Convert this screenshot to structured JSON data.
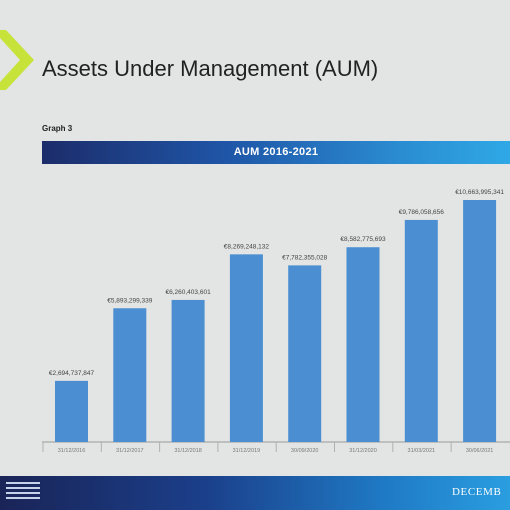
{
  "slide": {
    "title": "Assets Under Management (AUM)",
    "graph_label": "Graph 3",
    "footer_text": "DECEMB"
  },
  "colors": {
    "bar": "#4b8fd2",
    "logo_green": "#c7e33a",
    "header_start": "#1c2c6a",
    "header_end": "#2fa8e6"
  },
  "chart_data": {
    "type": "bar",
    "title": "AUM 2016-2021",
    "categories": [
      "31/12/2016",
      "31/12/2017",
      "31/12/2018",
      "31/12/2019",
      "30/09/2020",
      "31/12/2020",
      "31/03/2021",
      "30/06/2021"
    ],
    "values": [
      2694737847,
      5893299339,
      6260403601,
      8269248132,
      7782355028,
      8582775693,
      9786058656,
      10663995341
    ],
    "value_labels": [
      "€2,694,737,847",
      "€5,893,299,339",
      "€6,260,403,601",
      "€8,269,248,132",
      "€7,782,355,028",
      "€8,582,775,693",
      "€9,786,058,656",
      "€10,663,995,341"
    ],
    "xlabel": "",
    "ylabel": "",
    "ylim": [
      0,
      11000000000
    ],
    "grid": false,
    "legend": "none"
  }
}
